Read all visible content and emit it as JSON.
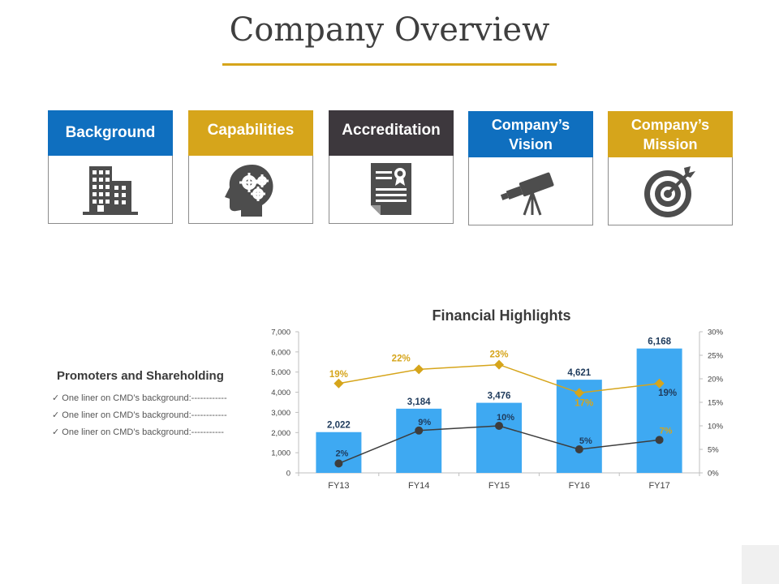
{
  "page": {
    "title": "Company Overview"
  },
  "cards": [
    {
      "label": "Background",
      "icon": "building-icon",
      "color": "#0f6fbf"
    },
    {
      "label": "Capabilities",
      "icon": "brain-gears-icon",
      "color": "#d6a51b"
    },
    {
      "label": "Accreditation",
      "icon": "certificate-icon",
      "color": "#3d383d"
    },
    {
      "label": "Company’s Vision",
      "icon": "telescope-icon",
      "color": "#0f6fbf"
    },
    {
      "label": "Company’s Mission",
      "icon": "target-icon",
      "color": "#d6a51b"
    }
  ],
  "promoters": {
    "title": "Promoters and Shareholding",
    "items": [
      "✓ One liner on CMD’s background:------------",
      "✓ One liner on CMD’s background:------------",
      "✓  One liner on CMD’s background:-----------"
    ]
  },
  "chart_data": {
    "type": "bar",
    "title": "Financial Highlights",
    "categories": [
      "FY13",
      "FY14",
      "FY15",
      "FY16",
      "FY17"
    ],
    "series": [
      {
        "values": [
          2022,
          3184,
          3476,
          4621,
          6168
        ],
        "labels": [
          "2,022",
          "3,184",
          "3,476",
          "4,621",
          "6,168"
        ],
        "color": "#3ea9f2",
        "axis": "left"
      },
      {
        "type": "line",
        "values": [
          19,
          22,
          23,
          17,
          19
        ],
        "labels": [
          "19%",
          "22%",
          "23%",
          "17%",
          "19%"
        ],
        "color": "#d6a51b",
        "marker": "diamond",
        "axis": "right"
      },
      {
        "type": "line",
        "values": [
          2,
          9,
          10,
          5,
          7
        ],
        "labels": [
          "2%",
          "9%",
          "10%",
          "5%",
          "7%"
        ],
        "color": "#3d3d3d",
        "marker": "circle",
        "axis": "right"
      }
    ],
    "ylim_left": [
      0,
      7000
    ],
    "yticks_left": [
      "0",
      "1,000",
      "2,000",
      "3,000",
      "4,000",
      "5,000",
      "6,000",
      "7,000"
    ],
    "ylim_right": [
      0,
      30
    ],
    "yticks_right": [
      "0%",
      "5%",
      "10%",
      "15%",
      "20%",
      "25%",
      "30%"
    ],
    "grid": false
  }
}
